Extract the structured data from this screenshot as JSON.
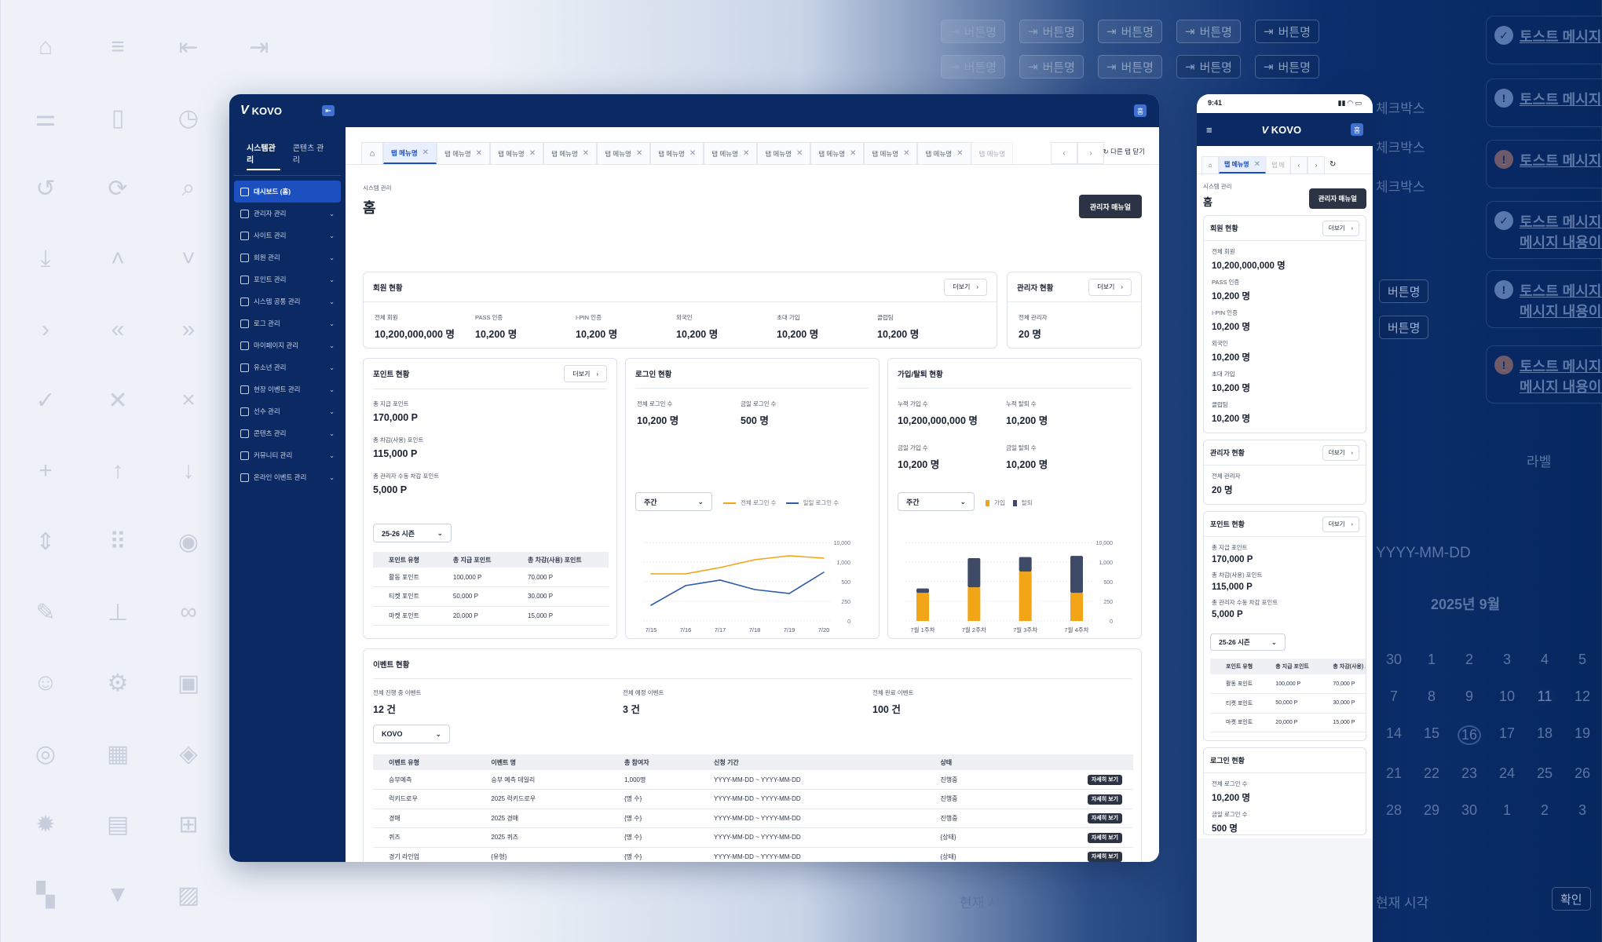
{
  "app": {
    "logo": "KOVO",
    "home_button": "홈"
  },
  "sidebar": {
    "tabs": [
      "시스템관리",
      "콘텐츠 관리"
    ],
    "items": [
      {
        "label": "대시보드 (홈)"
      },
      {
        "label": "관리자 관리"
      },
      {
        "label": "사이트 관리"
      },
      {
        "label": "회원 관리"
      },
      {
        "label": "포인트 관리"
      },
      {
        "label": "시스템 공통 관리"
      },
      {
        "label": "로그 관리"
      },
      {
        "label": "마이페이지 관리"
      },
      {
        "label": "유소년 관리"
      },
      {
        "label": "현장 이벤트 관리"
      },
      {
        "label": "선수 관리"
      },
      {
        "label": "콘텐츠 관리"
      },
      {
        "label": "커뮤니티 관리"
      },
      {
        "label": "온라인 이벤트 관리"
      }
    ]
  },
  "tabs": {
    "active": "탭 메뉴명",
    "others": [
      "탭 메뉴명",
      "탭 메뉴명",
      "탭 메뉴명",
      "탭 메뉴명",
      "탭 메뉴명",
      "탭 메뉴명",
      "탭 메뉴명",
      "탭 메뉴명",
      "탭 메뉴명",
      "탭 메뉴명"
    ],
    "faded": "탭 메뉴명",
    "close_others": "다른 탭 닫기"
  },
  "page": {
    "breadcrumb": "시스템 관리",
    "title": "홈",
    "manual_button": "관리자 매뉴얼",
    "more": "더보기"
  },
  "member": {
    "title": "회원 현황",
    "stats": [
      {
        "label": "전체 회원",
        "value": "10,200,000,000 명"
      },
      {
        "label": "PASS 인증",
        "value": "10,200 명"
      },
      {
        "label": "I-PIN 인증",
        "value": "10,200 명"
      },
      {
        "label": "외국인",
        "value": "10,200 명"
      },
      {
        "label": "초대 가입",
        "value": "10,200 명"
      },
      {
        "label": "클럽팀",
        "value": "10,200 명"
      }
    ]
  },
  "admin": {
    "title": "관리자 현황",
    "label": "전체 관리자",
    "value": "20 명"
  },
  "points": {
    "title": "포인트 현황",
    "stats": [
      {
        "label": "총 지급 포인트",
        "value": "170,000 P"
      },
      {
        "label": "총 차감(사용) 포인트",
        "value": "115,000 P"
      },
      {
        "label": "총 관리자 수동 차감 포인트",
        "value": "5,000 P"
      }
    ],
    "season": "25-26 시즌",
    "columns": [
      "포인트 유형",
      "총 지급 포인트",
      "총 차감(사용) 포인트"
    ],
    "rows": [
      [
        "활동 포인트",
        "100,000 P",
        "70,000 P"
      ],
      [
        "티켓 포인트",
        "50,000 P",
        "30,000 P"
      ],
      [
        "마켓 포인트",
        "20,000 P",
        "15,000 P"
      ]
    ]
  },
  "login": {
    "title": "로그인 현황",
    "stats": [
      {
        "label": "전체 로그인 수",
        "value": "10,200 명"
      },
      {
        "label": "금일 로그인 수",
        "value": "500 명"
      }
    ],
    "period": "주간"
  },
  "signup": {
    "title": "가입/탈퇴 현황",
    "stats": [
      {
        "label": "누적 가입 수",
        "value": "10,200,000,000 명"
      },
      {
        "label": "누적 탈퇴 수",
        "value": "10,200 명"
      },
      {
        "label": "금일 가입 수",
        "value": "10,200 명"
      },
      {
        "label": "금일 탈퇴 수",
        "value": "10,200 명"
      }
    ],
    "period": "주간"
  },
  "events": {
    "title": "이벤트 현황",
    "stats": [
      {
        "label": "전체 진행 중 이벤트",
        "value": "12 건"
      },
      {
        "label": "전체 예정 이벤트",
        "value": "3 건"
      },
      {
        "label": "전체 완료 이벤트",
        "value": "100 건"
      }
    ],
    "filter": "KOVO",
    "columns": [
      "이벤트 유형",
      "이벤트 명",
      "총 참여자",
      "신청 기간",
      "상태"
    ],
    "detail": "자세히 보기",
    "rows": [
      [
        "승부예측",
        "승부 예측 데일리",
        "1,000명",
        "YYYY-MM-DD ~ YYYY-MM-DD",
        "진행중"
      ],
      [
        "럭키드로우",
        "2025 럭키드로우",
        "{명 수}",
        "YYYY-MM-DD ~ YYYY-MM-DD",
        "진행중"
      ],
      [
        "경매",
        "2025 경매",
        "{명 수}",
        "YYYY-MM-DD ~ YYYY-MM-DD",
        "진행중"
      ],
      [
        "퀴즈",
        "2025 퀴즈",
        "{명 수}",
        "YYYY-MM-DD ~ YYYY-MM-DD",
        "{상태}"
      ],
      [
        "경기 라인업",
        "{유형}",
        "{명 수}",
        "YYYY-MM-DD ~ YYYY-MM-DD",
        "{상태}"
      ]
    ]
  },
  "chart_data": [
    {
      "type": "line",
      "title": "",
      "x": [
        "7/15",
        "7/16",
        "7/17",
        "7/18",
        "7/19",
        "7/20"
      ],
      "yticks": [
        "10,000",
        "1,000",
        "500",
        "250",
        "0"
      ],
      "series": [
        {
          "name": "전체 로그인 수",
          "color": "#f2a516",
          "values": [
            600,
            600,
            680,
            780,
            830,
            800
          ]
        },
        {
          "name": "일일 로그인 수",
          "color": "#2d5ca8",
          "values": [
            200,
            450,
            520,
            400,
            350,
            620
          ]
        }
      ]
    },
    {
      "type": "bar",
      "title": "",
      "categories": [
        "7월 1주차",
        "7월 2주차",
        "7월 3주차",
        "7월 4주차"
      ],
      "yticks": [
        "10,000",
        "1,000",
        "500",
        "250",
        "0"
      ],
      "series": [
        {
          "name": "가입",
          "color": "#f2a516",
          "values": [
            250,
            300,
            440,
            250
          ]
        },
        {
          "name": "탈퇴",
          "color": "#3e4a66",
          "values": [
            40,
            260,
            130,
            330
          ]
        }
      ]
    }
  ],
  "mobile": {
    "time": "9:41",
    "logo": "KOVO",
    "home_button": "홈",
    "tab": "탭 메뉴명",
    "tab2": "탭 메",
    "title": "홈",
    "breadcrumb": "시스템 관리",
    "manual_button": "관리자 매뉴얼"
  },
  "bg": {
    "button": "버튼명",
    "toast": "토스트 메시지",
    "checkbox": "체크박스",
    "date_placeholder": "YYYY-MM-DD",
    "calendar_title": "2025년 9월",
    "current_time": "현재 시각",
    "confirm": "확인",
    "select": "라벨",
    "toast_multi": "토스트 메시지 내\n메시지 내용이 입"
  }
}
